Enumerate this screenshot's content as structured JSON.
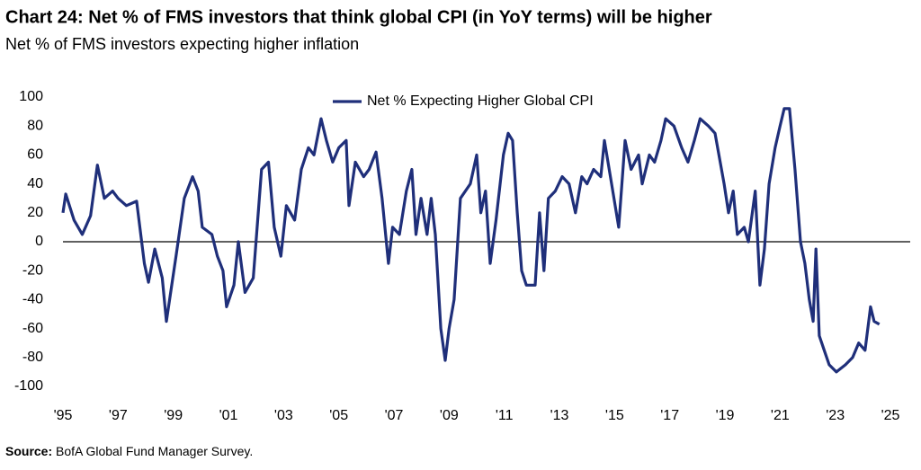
{
  "chart_data": {
    "type": "line",
    "title": "Chart 24: Net % of FMS investors that think global CPI (in YoY terms) will be higher",
    "subtitle": "Net % of FMS investors expecting higher inflation",
    "source_label": "Source:",
    "source": "BofA Global Fund Manager Survey.",
    "legend": "top",
    "xlim": [
      1995,
      2025
    ],
    "ylim": [
      -100,
      100
    ],
    "yticks": [
      100,
      80,
      60,
      40,
      20,
      0,
      -20,
      -40,
      -60,
      -80,
      -100
    ],
    "xticks": [
      {
        "value": 1995,
        "label": "'95"
      },
      {
        "value": 1997,
        "label": "'97"
      },
      {
        "value": 1999,
        "label": "'99"
      },
      {
        "value": 2001,
        "label": "'01"
      },
      {
        "value": 2003,
        "label": "'03"
      },
      {
        "value": 2005,
        "label": "'05"
      },
      {
        "value": 2007,
        "label": "'07"
      },
      {
        "value": 2009,
        "label": "'09"
      },
      {
        "value": 2011,
        "label": "'11"
      },
      {
        "value": 2013,
        "label": "'13"
      },
      {
        "value": 2015,
        "label": "'15"
      },
      {
        "value": 2017,
        "label": "'17"
      },
      {
        "value": 2019,
        "label": "'19"
      },
      {
        "value": 2021,
        "label": "'21"
      },
      {
        "value": 2023,
        "label": "'23"
      },
      {
        "value": 2025,
        "label": "'25"
      }
    ],
    "x": [
      1995.0,
      1995.1,
      1995.4,
      1995.7,
      1996.0,
      1996.25,
      1996.5,
      1996.8,
      1997.0,
      1997.3,
      1997.67,
      1997.95,
      1998.1,
      1998.33,
      1998.6,
      1998.75,
      1999.1,
      1999.4,
      1999.7,
      1999.9,
      2000.05,
      2000.4,
      2000.6,
      2000.8,
      2000.93,
      2001.2,
      2001.36,
      2001.6,
      2001.9,
      2002.2,
      2002.45,
      2002.66,
      2002.9,
      2003.1,
      2003.4,
      2003.64,
      2003.9,
      2004.1,
      2004.36,
      2004.55,
      2004.78,
      2005.0,
      2005.27,
      2005.37,
      2005.6,
      2005.9,
      2006.1,
      2006.35,
      2006.57,
      2006.8,
      2006.95,
      2007.2,
      2007.45,
      2007.65,
      2007.8,
      2007.98,
      2008.2,
      2008.35,
      2008.5,
      2008.7,
      2008.86,
      2009.0,
      2009.18,
      2009.41,
      2009.77,
      2010.0,
      2010.15,
      2010.32,
      2010.49,
      2010.7,
      2010.97,
      2011.14,
      2011.3,
      2011.47,
      2011.63,
      2011.8,
      2012.12,
      2012.28,
      2012.44,
      2012.6,
      2012.85,
      2013.1,
      2013.35,
      2013.58,
      2013.81,
      2014.0,
      2014.24,
      2014.5,
      2014.63,
      2014.89,
      2015.15,
      2015.38,
      2015.6,
      2015.87,
      2016.0,
      2016.26,
      2016.45,
      2016.68,
      2016.85,
      2017.15,
      2017.43,
      2017.66,
      2017.89,
      2018.1,
      2018.4,
      2018.64,
      2018.97,
      2019.13,
      2019.3,
      2019.45,
      2019.7,
      2019.85,
      2020.1,
      2020.27,
      2020.43,
      2020.6,
      2020.82,
      2021.0,
      2021.15,
      2021.34,
      2021.54,
      2021.74,
      2021.9,
      2022.06,
      2022.2,
      2022.3,
      2022.42,
      2022.6,
      2022.78,
      2023.04,
      2023.37,
      2023.63,
      2023.85,
      2024.08,
      2024.28,
      2024.41,
      2024.6
    ],
    "series": [
      {
        "name": "Net % Expecting Higher Global CPI",
        "color": "#1f2f7a",
        "values": [
          20,
          33,
          15,
          5,
          18,
          53,
          30,
          35,
          30,
          25,
          28,
          -15,
          -28,
          -5,
          -25,
          -55,
          -10,
          30,
          45,
          35,
          10,
          5,
          -10,
          -20,
          -45,
          -30,
          0,
          -35,
          -25,
          50,
          55,
          10,
          -10,
          25,
          15,
          50,
          65,
          60,
          85,
          70,
          55,
          65,
          70,
          25,
          55,
          45,
          50,
          62,
          30,
          -15,
          10,
          5,
          35,
          50,
          5,
          30,
          5,
          30,
          5,
          -60,
          -82,
          -60,
          -40,
          30,
          40,
          60,
          20,
          35,
          -15,
          15,
          60,
          75,
          70,
          20,
          -20,
          -30,
          -30,
          20,
          -20,
          30,
          35,
          45,
          40,
          20,
          45,
          40,
          50,
          45,
          70,
          40,
          10,
          70,
          50,
          60,
          40,
          60,
          55,
          70,
          85,
          80,
          65,
          55,
          70,
          85,
          80,
          75,
          40,
          20,
          35,
          5,
          10,
          0,
          35,
          -30,
          -5,
          40,
          65,
          80,
          92,
          92,
          50,
          0,
          -15,
          -40,
          -55,
          -5,
          -65,
          -75,
          -85,
          -90,
          -85,
          -80,
          -70,
          -75,
          -45,
          -55,
          -57
        ]
      }
    ]
  }
}
